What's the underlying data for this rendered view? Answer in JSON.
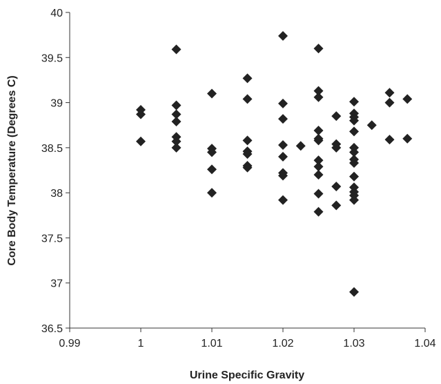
{
  "chart_data": {
    "type": "scatter",
    "title": "",
    "xlabel": "Urine Specific Gravity",
    "ylabel": "Core Body Temperature (Degrees C)",
    "xlim": [
      0.99,
      1.04
    ],
    "ylim": [
      36.5,
      40
    ],
    "x_ticks": [
      0.99,
      1.0,
      1.01,
      1.02,
      1.03,
      1.04
    ],
    "y_ticks": [
      36.5,
      37,
      37.5,
      38,
      38.5,
      39,
      39.5,
      40
    ],
    "x_tick_labels": [
      "0.99",
      "1",
      "1.01",
      "1.02",
      "1.03",
      "1.04"
    ],
    "y_tick_labels": [
      "36.5",
      "37",
      "37.5",
      "38",
      "38.5",
      "39",
      "39.5",
      "40"
    ],
    "grid": false,
    "legend": "none",
    "marker": "diamond",
    "marker_color": "#222222",
    "points": [
      {
        "x": 1.0,
        "y": 38.92
      },
      {
        "x": 1.0,
        "y": 38.87
      },
      {
        "x": 1.0,
        "y": 38.57
      },
      {
        "x": 1.005,
        "y": 39.59
      },
      {
        "x": 1.005,
        "y": 38.97
      },
      {
        "x": 1.005,
        "y": 38.87
      },
      {
        "x": 1.005,
        "y": 38.79
      },
      {
        "x": 1.005,
        "y": 38.62
      },
      {
        "x": 1.005,
        "y": 38.57
      },
      {
        "x": 1.005,
        "y": 38.5
      },
      {
        "x": 1.01,
        "y": 39.1
      },
      {
        "x": 1.01,
        "y": 38.49
      },
      {
        "x": 1.01,
        "y": 38.45
      },
      {
        "x": 1.01,
        "y": 38.26
      },
      {
        "x": 1.01,
        "y": 38.0
      },
      {
        "x": 1.015,
        "y": 39.27
      },
      {
        "x": 1.015,
        "y": 39.04
      },
      {
        "x": 1.015,
        "y": 38.58
      },
      {
        "x": 1.015,
        "y": 38.46
      },
      {
        "x": 1.015,
        "y": 38.43
      },
      {
        "x": 1.015,
        "y": 38.3
      },
      {
        "x": 1.015,
        "y": 38.28
      },
      {
        "x": 1.02,
        "y": 39.74
      },
      {
        "x": 1.02,
        "y": 38.99
      },
      {
        "x": 1.02,
        "y": 38.82
      },
      {
        "x": 1.02,
        "y": 38.53
      },
      {
        "x": 1.02,
        "y": 38.4
      },
      {
        "x": 1.02,
        "y": 38.22
      },
      {
        "x": 1.02,
        "y": 38.19
      },
      {
        "x": 1.02,
        "y": 37.92
      },
      {
        "x": 1.0225,
        "y": 38.52
      },
      {
        "x": 1.025,
        "y": 39.6
      },
      {
        "x": 1.025,
        "y": 39.13
      },
      {
        "x": 1.025,
        "y": 39.06
      },
      {
        "x": 1.025,
        "y": 38.69
      },
      {
        "x": 1.025,
        "y": 38.6
      },
      {
        "x": 1.025,
        "y": 38.58
      },
      {
        "x": 1.025,
        "y": 38.36
      },
      {
        "x": 1.025,
        "y": 38.29
      },
      {
        "x": 1.025,
        "y": 38.2
      },
      {
        "x": 1.025,
        "y": 37.99
      },
      {
        "x": 1.025,
        "y": 37.79
      },
      {
        "x": 1.0275,
        "y": 38.85
      },
      {
        "x": 1.0275,
        "y": 38.54
      },
      {
        "x": 1.0275,
        "y": 38.5
      },
      {
        "x": 1.0275,
        "y": 38.07
      },
      {
        "x": 1.0275,
        "y": 37.86
      },
      {
        "x": 1.03,
        "y": 39.01
      },
      {
        "x": 1.03,
        "y": 38.88
      },
      {
        "x": 1.03,
        "y": 38.84
      },
      {
        "x": 1.03,
        "y": 38.8
      },
      {
        "x": 1.03,
        "y": 38.68
      },
      {
        "x": 1.03,
        "y": 38.5
      },
      {
        "x": 1.03,
        "y": 38.45
      },
      {
        "x": 1.03,
        "y": 38.37
      },
      {
        "x": 1.03,
        "y": 38.33
      },
      {
        "x": 1.03,
        "y": 38.18
      },
      {
        "x": 1.03,
        "y": 38.06
      },
      {
        "x": 1.03,
        "y": 38.01
      },
      {
        "x": 1.03,
        "y": 37.97
      },
      {
        "x": 1.03,
        "y": 37.92
      },
      {
        "x": 1.03,
        "y": 36.9
      },
      {
        "x": 1.0325,
        "y": 38.75
      },
      {
        "x": 1.035,
        "y": 39.11
      },
      {
        "x": 1.035,
        "y": 39.0
      },
      {
        "x": 1.035,
        "y": 38.59
      },
      {
        "x": 1.0375,
        "y": 39.04
      },
      {
        "x": 1.0375,
        "y": 38.6
      }
    ]
  }
}
